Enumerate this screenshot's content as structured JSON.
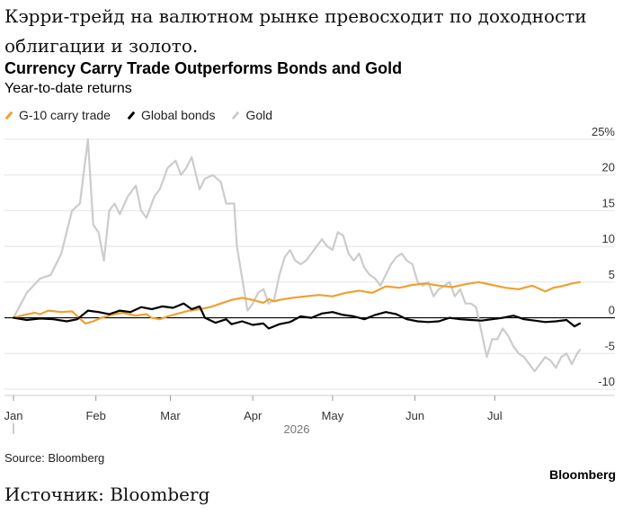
{
  "caption_top": "Кэрри-трейд на валютном рынке превосходит по доходности облигации и золото.",
  "chart_data": {
    "type": "line",
    "title": "Currency Carry Trade Outperforms Bonds and Gold",
    "subtitle": "Year-to-date returns",
    "year_label": "2026",
    "x_months": [
      "Jan",
      "Feb",
      "Mar",
      "Apr",
      "May",
      "Jun",
      "Jul"
    ],
    "y_ticks": [
      25,
      20,
      15,
      10,
      5,
      0,
      -5,
      -10
    ],
    "y_tick_labels": [
      "25%",
      "20",
      "15",
      "10",
      "5",
      "0",
      "-5",
      "-10"
    ],
    "ylim": [
      -10,
      25
    ],
    "grid": true,
    "legend_position": "top-left",
    "series": [
      {
        "name": "G-10 carry trade",
        "color": "#f0a030",
        "points": [
          [
            0,
            0
          ],
          [
            4,
            0.4
          ],
          [
            8,
            0.7
          ],
          [
            10,
            0.5
          ],
          [
            13,
            1
          ],
          [
            18,
            0.8
          ],
          [
            22,
            0.9
          ],
          [
            27,
            -0.8
          ],
          [
            30,
            -0.5
          ],
          [
            33,
            0
          ],
          [
            38,
            0.5
          ],
          [
            41,
            0.7
          ],
          [
            46,
            0.3
          ],
          [
            50,
            0.5
          ],
          [
            52,
            0
          ],
          [
            55,
            -0.2
          ],
          [
            58,
            0.2
          ],
          [
            62,
            0.6
          ],
          [
            66,
            1
          ],
          [
            70,
            1.2
          ],
          [
            74,
            1.5
          ],
          [
            78,
            2.0
          ],
          [
            82,
            2.5
          ],
          [
            86,
            2.8
          ],
          [
            90,
            2.5
          ],
          [
            94,
            2.1
          ],
          [
            96,
            2.6
          ],
          [
            98,
            2.3
          ],
          [
            100,
            2.5
          ],
          [
            105,
            2.8
          ],
          [
            110,
            3.0
          ],
          [
            115,
            3.2
          ],
          [
            120,
            3.0
          ],
          [
            125,
            3.5
          ],
          [
            130,
            3.8
          ],
          [
            135,
            3.5
          ],
          [
            140,
            4.4
          ],
          [
            145,
            4.2
          ],
          [
            150,
            4.6
          ],
          [
            155,
            4.8
          ],
          [
            160,
            4.5
          ],
          [
            165,
            4.3
          ],
          [
            170,
            4.7
          ],
          [
            175,
            5.0
          ],
          [
            180,
            4.6
          ],
          [
            185,
            4.2
          ],
          [
            190,
            4.0
          ],
          [
            195,
            4.5
          ],
          [
            200,
            3.7
          ],
          [
            203,
            4.2
          ],
          [
            206,
            4.4
          ],
          [
            210,
            4.8
          ],
          [
            213,
            5.0
          ]
        ]
      },
      {
        "name": "Global bonds",
        "color": "#000000",
        "points": [
          [
            0,
            0
          ],
          [
            5,
            -0.3
          ],
          [
            10,
            -0.1
          ],
          [
            15,
            -0.2
          ],
          [
            20,
            -0.5
          ],
          [
            24,
            -0.2
          ],
          [
            28,
            1.0
          ],
          [
            32,
            0.8
          ],
          [
            36,
            0.5
          ],
          [
            40,
            1.0
          ],
          [
            44,
            0.8
          ],
          [
            48,
            1.5
          ],
          [
            52,
            1.2
          ],
          [
            56,
            1.6
          ],
          [
            60,
            1.4
          ],
          [
            64,
            2.0
          ],
          [
            67,
            1.2
          ],
          [
            70,
            1.6
          ],
          [
            72,
            0
          ],
          [
            76,
            -0.7
          ],
          [
            80,
            -0.2
          ],
          [
            82,
            -0.9
          ],
          [
            86,
            -0.5
          ],
          [
            90,
            -1.0
          ],
          [
            94,
            -0.8
          ],
          [
            96,
            -1.5
          ],
          [
            100,
            -0.9
          ],
          [
            104,
            -0.6
          ],
          [
            108,
            0.2
          ],
          [
            112,
            0
          ],
          [
            116,
            0.6
          ],
          [
            120,
            0.8
          ],
          [
            124,
            0.4
          ],
          [
            128,
            0.2
          ],
          [
            132,
            -0.2
          ],
          [
            136,
            0.4
          ],
          [
            140,
            0.8
          ],
          [
            144,
            0.5
          ],
          [
            148,
            -0.2
          ],
          [
            152,
            -0.5
          ],
          [
            156,
            -0.6
          ],
          [
            160,
            -0.5
          ],
          [
            164,
            0
          ],
          [
            168,
            -0.2
          ],
          [
            172,
            -0.3
          ],
          [
            176,
            -0.4
          ],
          [
            180,
            -0.2
          ],
          [
            184,
            0
          ],
          [
            188,
            0.3
          ],
          [
            192,
            -0.2
          ],
          [
            196,
            -0.4
          ],
          [
            200,
            -0.6
          ],
          [
            204,
            -0.5
          ],
          [
            208,
            -0.3
          ],
          [
            211,
            -1.2
          ],
          [
            213,
            -0.8
          ]
        ]
      },
      {
        "name": "Gold",
        "color": "#cccccc",
        "points": [
          [
            0,
            0
          ],
          [
            5,
            3.5
          ],
          [
            10,
            5.5
          ],
          [
            14,
            6
          ],
          [
            18,
            9
          ],
          [
            22,
            15
          ],
          [
            25,
            16
          ],
          [
            28,
            25
          ],
          [
            30,
            13
          ],
          [
            32,
            12
          ],
          [
            34,
            8
          ],
          [
            36,
            15
          ],
          [
            38,
            16
          ],
          [
            40,
            14.5
          ],
          [
            43,
            17
          ],
          [
            46,
            18.5
          ],
          [
            48,
            15
          ],
          [
            50,
            14
          ],
          [
            53,
            17
          ],
          [
            55,
            18
          ],
          [
            58,
            21
          ],
          [
            61,
            22
          ],
          [
            63,
            20
          ],
          [
            65,
            21
          ],
          [
            67,
            22.5
          ],
          [
            70,
            18
          ],
          [
            72,
            19.5
          ],
          [
            75,
            20
          ],
          [
            78,
            19
          ],
          [
            80,
            16
          ],
          [
            83,
            16
          ],
          [
            84,
            10
          ],
          [
            86,
            5.5
          ],
          [
            88,
            1
          ],
          [
            90,
            2
          ],
          [
            92,
            3.5
          ],
          [
            94,
            4
          ],
          [
            96,
            2
          ],
          [
            98,
            2.5
          ],
          [
            100,
            6
          ],
          [
            102,
            8.5
          ],
          [
            104,
            9.5
          ],
          [
            106,
            8
          ],
          [
            108,
            7.5
          ],
          [
            110,
            8
          ],
          [
            112,
            9
          ],
          [
            114,
            10
          ],
          [
            116,
            11
          ],
          [
            118,
            10
          ],
          [
            120,
            9.5
          ],
          [
            122,
            12
          ],
          [
            124,
            11.5
          ],
          [
            126,
            9
          ],
          [
            128,
            8
          ],
          [
            130,
            9
          ],
          [
            132,
            7
          ],
          [
            134,
            6
          ],
          [
            136,
            5.5
          ],
          [
            138,
            4.5
          ],
          [
            140,
            6
          ],
          [
            142,
            7.5
          ],
          [
            144,
            8.5
          ],
          [
            146,
            9
          ],
          [
            148,
            8
          ],
          [
            150,
            7.5
          ],
          [
            152,
            5
          ],
          [
            154,
            4.5
          ],
          [
            156,
            5
          ],
          [
            158,
            3
          ],
          [
            160,
            4
          ],
          [
            162,
            4.5
          ],
          [
            164,
            5
          ],
          [
            166,
            3
          ],
          [
            168,
            4
          ],
          [
            170,
            2
          ],
          [
            172,
            2
          ],
          [
            174,
            1.5
          ],
          [
            176,
            -2
          ],
          [
            178,
            -5.5
          ],
          [
            180,
            -3
          ],
          [
            182,
            -3
          ],
          [
            184,
            -1.5
          ],
          [
            186,
            -2.5
          ],
          [
            188,
            -4
          ],
          [
            190,
            -5
          ],
          [
            192,
            -5.5
          ],
          [
            194,
            -6.5
          ],
          [
            196,
            -7.5
          ],
          [
            198,
            -6.5
          ],
          [
            200,
            -5.5
          ],
          [
            202,
            -6
          ],
          [
            204,
            -7
          ],
          [
            206,
            -5.5
          ],
          [
            208,
            -5
          ],
          [
            210,
            -6.5
          ],
          [
            212,
            -5
          ],
          [
            213,
            -4.5
          ]
        ]
      }
    ]
  },
  "source": "Source: Bloomberg",
  "brand": "Bloomberg",
  "footer_caption": "Источник: Bloomberg"
}
